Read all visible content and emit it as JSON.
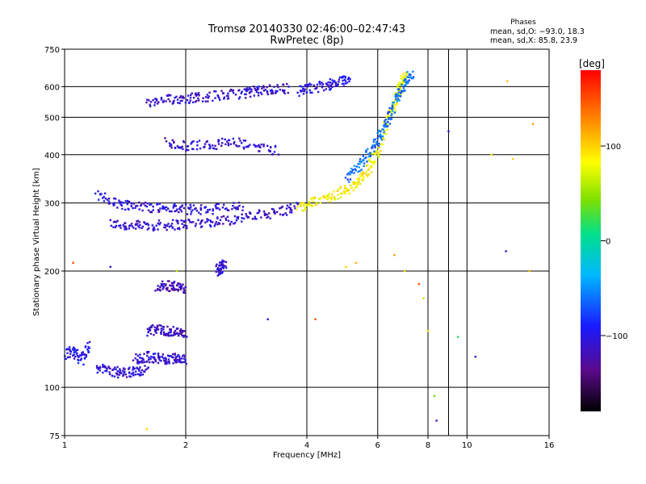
{
  "chart_data": {
    "type": "scatter",
    "title": "Tromsø 20140330 02:46:00–02:47:43",
    "subtitle": "RwPretec (8p)",
    "xlabel": "Frequency [MHz]",
    "ylabel": "Stationary phase Virtual Height [km]",
    "x_scale": "log",
    "y_scale": "log",
    "xlim": [
      1,
      16
    ],
    "ylim": [
      75,
      750
    ],
    "x_ticks": [
      1,
      2,
      4,
      6,
      8,
      10,
      16
    ],
    "x_minor_ticks": [
      9
    ],
    "y_ticks": [
      75,
      100,
      200,
      300,
      400,
      500,
      600,
      750
    ],
    "grid": true,
    "phases_box": {
      "heading": "Phases",
      "line_o": "mean, sd,O: −93.0, 18.3",
      "line_x": "mean, sd,X:  85.8, 23.9"
    },
    "colorbar": {
      "label": "[deg]",
      "range": [
        -180,
        180
      ],
      "ticks": [
        100,
        0,
        -100
      ]
    },
    "traces": [
      {
        "x": [
          1.3,
          1.45,
          1.6,
          1.8,
          2.0,
          2.3,
          2.6,
          3.0,
          3.4,
          3.8
        ],
        "y": [
          265,
          262,
          262,
          263,
          265,
          268,
          272,
          278,
          285,
          292
        ],
        "phase": -110
      },
      {
        "x": [
          1.2,
          1.35,
          1.5,
          1.7,
          1.9,
          2.1,
          2.4,
          2.8
        ],
        "y": [
          315,
          300,
          295,
          292,
          290,
          288,
          290,
          295
        ],
        "phase": -105
      },
      {
        "x": [
          1.6,
          1.8,
          2.0,
          2.2,
          2.5,
          2.8,
          3.0,
          3.3,
          3.6
        ],
        "y": [
          540,
          555,
          560,
          565,
          570,
          578,
          585,
          590,
          595
        ],
        "phase": -110
      },
      {
        "x": [
          3.8,
          4.1,
          4.5,
          4.8,
          5.1
        ],
        "y": [
          585,
          595,
          605,
          615,
          630
        ],
        "phase": -100
      },
      {
        "x": [
          3.8,
          4.1,
          4.5,
          4.9,
          5.3,
          5.6,
          5.9,
          6.2,
          6.5
        ],
        "y": [
          292,
          300,
          310,
          320,
          335,
          355,
          395,
          450,
          520
        ],
        "phase": 85
      },
      {
        "x": [
          6.5,
          6.7,
          6.9,
          7.0
        ],
        "y": [
          520,
          570,
          610,
          640
        ],
        "phase": 80
      },
      {
        "x": [
          5.0,
          5.4,
          5.8,
          6.1,
          6.4,
          6.7,
          7.0,
          7.3
        ],
        "y": [
          345,
          375,
          410,
          450,
          500,
          560,
          610,
          650
        ],
        "phase": -60
      },
      {
        "x": [
          1.8,
          2.0,
          2.3,
          2.6,
          3.0,
          3.4
        ],
        "y": [
          430,
          420,
          425,
          430,
          420,
          410
        ],
        "phase": -110
      },
      {
        "x": [
          1.7,
          1.8,
          1.9,
          2.0
        ],
        "y": [
          182,
          183,
          182,
          180
        ],
        "phase": -120
      },
      {
        "x": [
          1.6,
          1.7,
          1.8,
          1.9,
          2.0
        ],
        "y": [
          140,
          141,
          140,
          139,
          138
        ],
        "phase": -115
      },
      {
        "x": [
          1.5,
          1.6,
          1.7,
          1.8,
          1.9,
          2.0
        ],
        "y": [
          118,
          120,
          119,
          118,
          120,
          118
        ],
        "phase": -110
      },
      {
        "x": [
          1.2,
          1.3,
          1.4,
          1.5,
          1.6
        ],
        "y": [
          112,
          110,
          109,
          110,
          111
        ],
        "phase": -105
      },
      {
        "x": [
          1.0,
          1.05,
          1.1,
          1.15
        ],
        "y": [
          120,
          125,
          118,
          130
        ],
        "phase": -100
      },
      {
        "x": [
          2.4,
          2.45,
          2.5
        ],
        "y": [
          200,
          205,
          210
        ],
        "phase": -110
      }
    ],
    "scattered_points": [
      {
        "x": 5.0,
        "y": 205,
        "phase": 100
      },
      {
        "x": 5.3,
        "y": 210,
        "phase": 110
      },
      {
        "x": 6.6,
        "y": 220,
        "phase": 120
      },
      {
        "x": 7.0,
        "y": 200,
        "phase": 95
      },
      {
        "x": 7.6,
        "y": 185,
        "phase": 150
      },
      {
        "x": 7.8,
        "y": 170,
        "phase": 60
      },
      {
        "x": 8.0,
        "y": 140,
        "phase": 90
      },
      {
        "x": 8.3,
        "y": 95,
        "phase": 40
      },
      {
        "x": 8.4,
        "y": 82,
        "phase": -120
      },
      {
        "x": 9.5,
        "y": 135,
        "phase": 20
      },
      {
        "x": 10.5,
        "y": 120,
        "phase": -110
      },
      {
        "x": 12.5,
        "y": 225,
        "phase": -110
      },
      {
        "x": 14.3,
        "y": 200,
        "phase": 110
      },
      {
        "x": 14.6,
        "y": 480,
        "phase": 120
      },
      {
        "x": 12.6,
        "y": 620,
        "phase": 110
      },
      {
        "x": 4.2,
        "y": 150,
        "phase": 150
      },
      {
        "x": 3.2,
        "y": 150,
        "phase": -110
      },
      {
        "x": 1.05,
        "y": 210,
        "phase": 150
      },
      {
        "x": 1.3,
        "y": 205,
        "phase": -100
      },
      {
        "x": 1.6,
        "y": 78,
        "phase": 100
      },
      {
        "x": 1.9,
        "y": 200,
        "phase": 60
      },
      {
        "x": 11.5,
        "y": 400,
        "phase": 90
      },
      {
        "x": 13.0,
        "y": 390,
        "phase": 100
      },
      {
        "x": 9.0,
        "y": 460,
        "phase": -100
      }
    ]
  }
}
